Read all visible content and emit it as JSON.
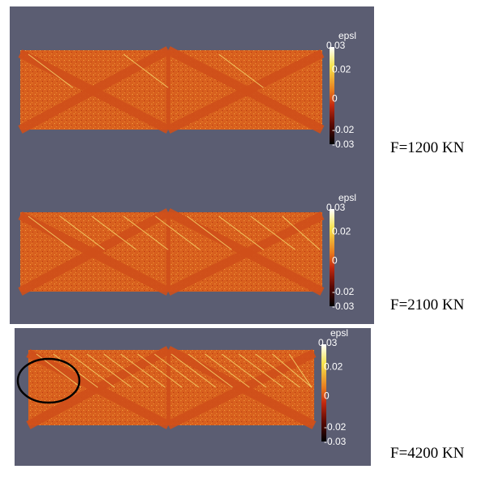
{
  "panels": [
    {
      "colorbar": {
        "title": "epsl",
        "ticks": [
          "0.03",
          "0.02",
          "0",
          "-0.02",
          "-0.03"
        ]
      },
      "label": "F=1200 KN"
    },
    {
      "colorbar": {
        "title": "epsl",
        "ticks": [
          "0.03",
          "0.02",
          "0",
          "-0.02",
          "-0.03"
        ]
      },
      "label": "F=2100 KN"
    },
    {
      "colorbar": {
        "title": "epsl",
        "ticks": [
          "0.03",
          "0.02",
          "0",
          "-0.02",
          "-0.03"
        ]
      },
      "label": "F=4200 KN"
    }
  ]
}
